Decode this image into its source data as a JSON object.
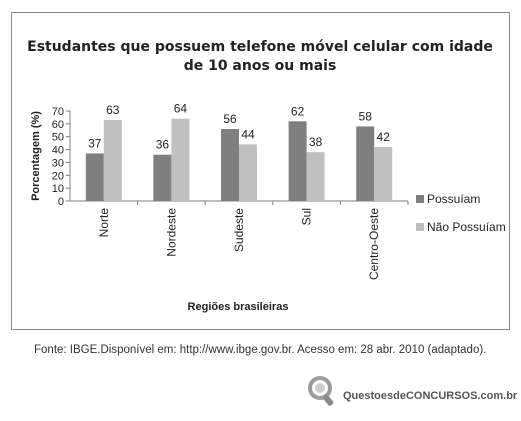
{
  "chart_data": {
    "type": "bar",
    "title_lines": [
      "Estudantes que possuem telefone móvel celular com idade",
      "de 10 anos ou mais"
    ],
    "categories": [
      "Norte",
      "Nordeste",
      "Sudeste",
      "Sul",
      "Centro-Oeste"
    ],
    "series": [
      {
        "name": "Possuíam",
        "color": "#7f7f7f",
        "values": [
          37,
          36,
          56,
          62,
          58
        ]
      },
      {
        "name": "Não Possuíam",
        "color": "#c0c0c0",
        "values": [
          63,
          64,
          44,
          38,
          42
        ]
      }
    ],
    "ylim": [
      0,
      70
    ],
    "yticks": [
      0,
      10,
      20,
      30,
      40,
      50,
      60,
      70
    ],
    "xlabel": "Regiões brasileiras",
    "ylabel": "Porcentagem (%)",
    "legend_position": "right",
    "grid": false
  },
  "source_text": "Fonte: IBGE.Disponível em: http://www.ibge.gov.br. Acesso em: 28 abr. 2010 (adaptado).",
  "watermark_text": "QuestoesdeCONCURSOS.com.br"
}
